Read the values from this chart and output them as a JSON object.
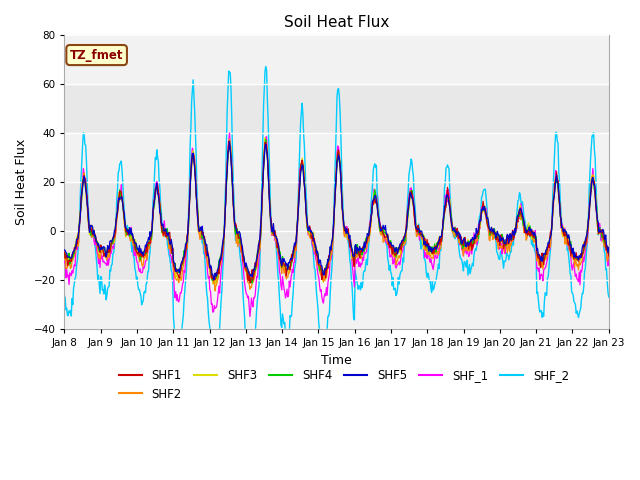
{
  "title": "Soil Heat Flux",
  "ylabel": "Soil Heat Flux",
  "xlabel": "Time",
  "ylim": [
    -40,
    80
  ],
  "yticks": [
    -40,
    -20,
    0,
    20,
    40,
    60,
    80
  ],
  "xtick_labels": [
    "Jan 8",
    "Jan 9",
    "Jan 10",
    "Jan 11",
    "Jan 12",
    "Jan 13",
    "Jan 14",
    "Jan 15",
    "Jan 16",
    "Jan 17",
    "Jan 18",
    "Jan 19",
    "Jan 20",
    "Jan 21",
    "Jan 22",
    "Jan 23"
  ],
  "series_colors": {
    "SHF1": "#cc0000",
    "SHF2": "#ff8800",
    "SHF3": "#dddd00",
    "SHF4": "#00cc00",
    "SHF5": "#0000cc",
    "SHF_1": "#ff00ff",
    "SHF_2": "#00ccff"
  },
  "legend_label": "TZ_fmet",
  "fig_bg_color": "#ffffff",
  "plot_bg_color": "#e8e8e8",
  "band_light_color": "#f2f2f2",
  "band_dark_color": "#e0e0e0",
  "figsize": [
    6.4,
    4.8
  ],
  "dpi": 100,
  "n_days": 15,
  "pts_per_day": 48,
  "day_amplitudes": [
    22,
    16,
    18,
    32,
    36,
    36,
    28,
    32,
    15,
    16,
    15,
    10,
    8,
    22,
    22
  ],
  "shf2_extra_depth": 1.3,
  "shf1_extra_depth": 1.1,
  "shf_1_extra_depth": 1.5,
  "shf_2_scale": 1.9
}
